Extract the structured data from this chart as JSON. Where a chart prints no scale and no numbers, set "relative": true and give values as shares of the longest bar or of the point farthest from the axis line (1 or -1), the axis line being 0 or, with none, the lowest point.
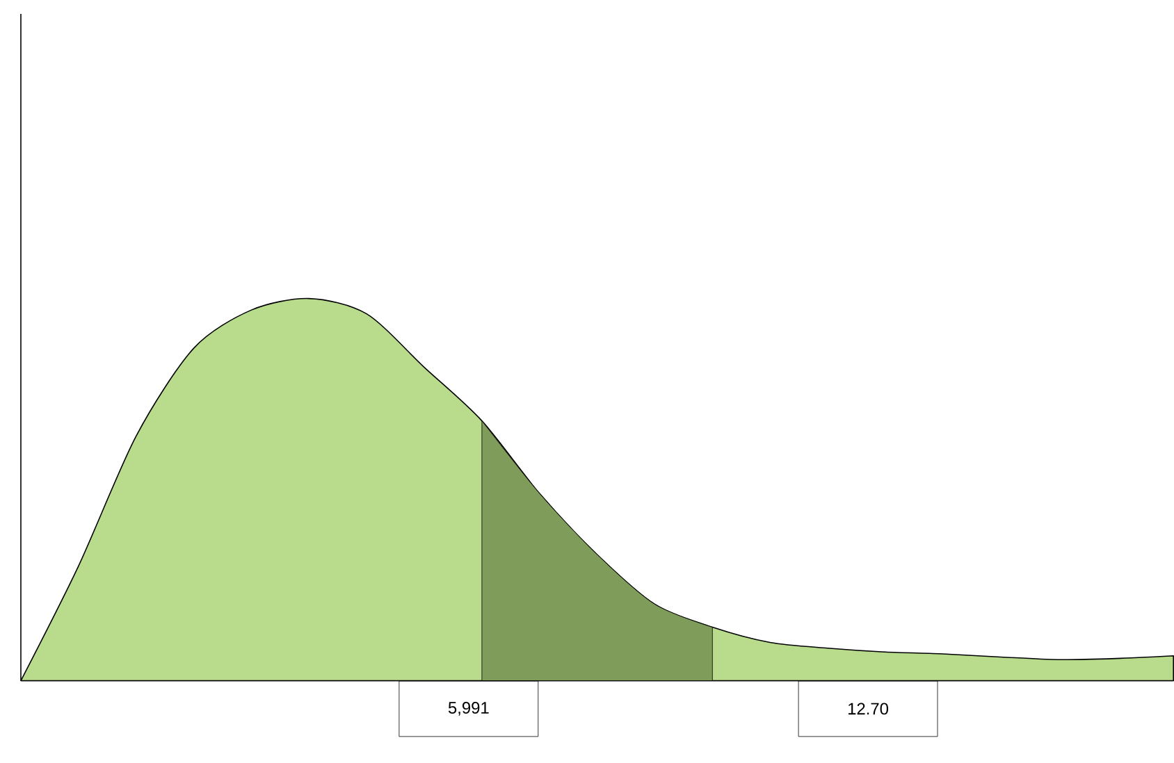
{
  "chart_data": {
    "type": "area",
    "relative": true,
    "categories": [
      null,
      null,
      null,
      null,
      null,
      null,
      null,
      null,
      null,
      null,
      null,
      null,
      null,
      null,
      null,
      null,
      null,
      null,
      null,
      null,
      null
    ],
    "series": [
      {
        "color": "#b8dc8c",
        "values": [
          0,
          0.3,
          0.64,
          0.87,
          0.97,
          1.0,
          0.96,
          0.82,
          0.68,
          0.49,
          0.33,
          0.2,
          0.14,
          0.1,
          0.085,
          0.075,
          0.07,
          0.062,
          0.055,
          0.058,
          0.065
        ]
      },
      {
        "color": "#7f9c5a",
        "values": [
          null,
          null,
          null,
          null,
          null,
          null,
          null,
          null,
          0.68,
          0.49,
          0.33,
          0.2,
          0.14,
          null,
          null,
          null,
          null,
          null,
          null,
          null,
          null
        ]
      }
    ],
    "annotations": [
      "5,991",
      "12.70"
    ],
    "tick_labels": false
  }
}
